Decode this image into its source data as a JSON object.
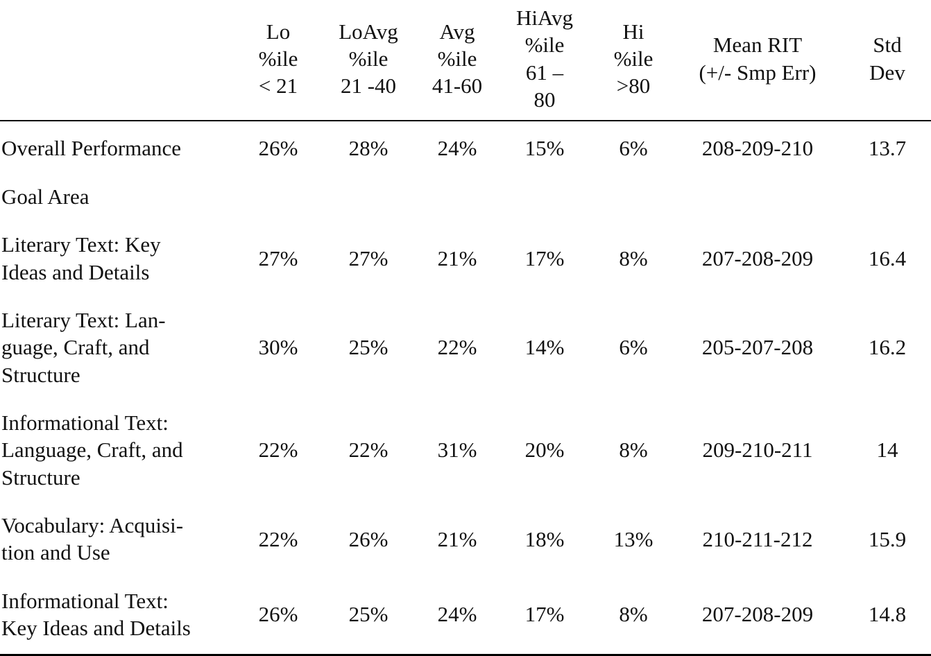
{
  "table": {
    "description": "Student percentile distribution and RIT score summary table",
    "columns": [
      {
        "id": "row-label",
        "label": ""
      },
      {
        "id": "lo",
        "label": "Lo\n%ile\n< 21"
      },
      {
        "id": "loavg",
        "label": "LoAvg\n%ile\n21 -40"
      },
      {
        "id": "avg",
        "label": "Avg\n%ile\n41-60"
      },
      {
        "id": "hiavg",
        "label": "HiAvg\n%ile\n61 –\n80"
      },
      {
        "id": "hi",
        "label": "Hi\n%ile\n>80"
      },
      {
        "id": "mean-rit",
        "label": "Mean RIT\n(+/- Smp Err)"
      },
      {
        "id": "std-dev",
        "label": "Std\nDev"
      }
    ],
    "rows": [
      {
        "label": "Overall Performance",
        "values": [
          "26%",
          "28%",
          "24%",
          "15%",
          "6%",
          "208-209-210",
          "13.7"
        ]
      },
      {
        "label": "Goal Area",
        "values": [
          "",
          "",
          "",
          "",
          "",
          "",
          ""
        ]
      },
      {
        "label": "Literary Text: Key\nIdeas and Details",
        "values": [
          "27%",
          "27%",
          "21%",
          "17%",
          "8%",
          "207-208-209",
          "16.4"
        ]
      },
      {
        "label": "Literary Text: Lan-\nguage, Craft, and\nStructure",
        "values": [
          "30%",
          "25%",
          "22%",
          "14%",
          "6%",
          "205-207-208",
          "16.2"
        ]
      },
      {
        "label": "Informational Text:\nLanguage, Craft, and\nStructure",
        "values": [
          "22%",
          "22%",
          "31%",
          "20%",
          "8%",
          "209-210-211",
          "14"
        ]
      },
      {
        "label": "Vocabulary: Acquisi-\ntion and Use",
        "values": [
          "22%",
          "26%",
          "21%",
          "18%",
          "13%",
          "210-211-212",
          "15.9"
        ]
      },
      {
        "label": "Informational Text:\nKey Ideas and Details",
        "values": [
          "26%",
          "25%",
          "24%",
          "17%",
          "8%",
          "207-208-209",
          "14.8"
        ]
      }
    ],
    "text_color": "#111111",
    "rule_color": "#000000"
  }
}
